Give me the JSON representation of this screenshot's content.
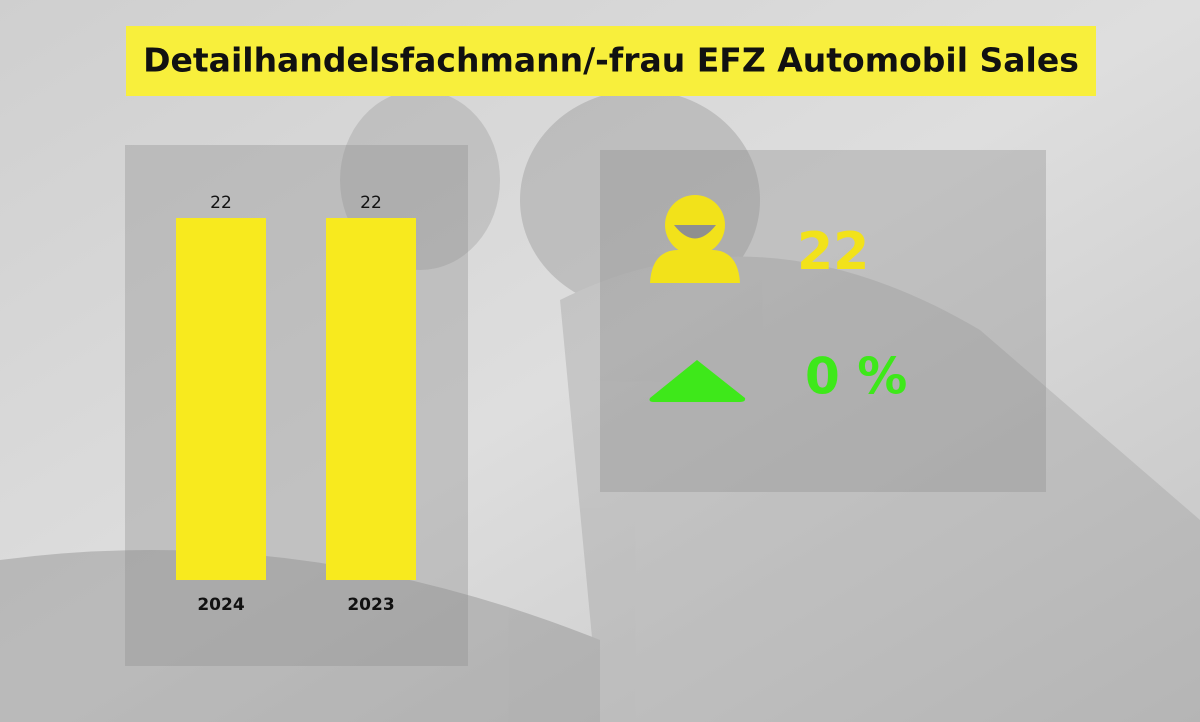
{
  "title": "Detailhandelsfachmann/-frau EFZ Automobil Sales",
  "chart_data": {
    "type": "bar",
    "categories": [
      "2024",
      "2023"
    ],
    "values": [
      22,
      22
    ],
    "color": "#f8ea1e"
  },
  "kpi": {
    "count": 22,
    "count_color": "#f2e21a",
    "change": {
      "value": 0,
      "label": "0 %"
    },
    "change_color": "#3ee81a"
  }
}
